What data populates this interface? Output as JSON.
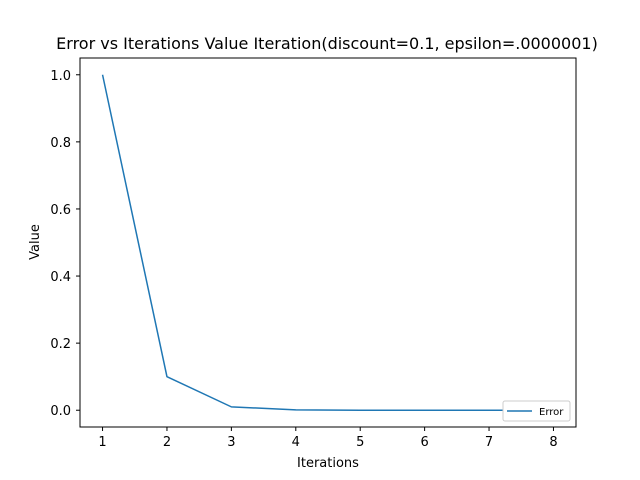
{
  "chart_data": {
    "type": "line",
    "title": "Error vs Iterations Value Iteration(discount=0.1, epsilon=.0000001)",
    "xlabel": "Iterations",
    "ylabel": "Value",
    "x": [
      1,
      2,
      3,
      4,
      5,
      6,
      7,
      8
    ],
    "series": [
      {
        "name": "Error",
        "values": [
          1.0,
          0.1,
          0.01,
          0.001,
          0.0001,
          1e-05,
          1e-06,
          1e-07
        ],
        "color": "#1f77b4"
      }
    ],
    "xlim": [
      0.65,
      8.35
    ],
    "ylim": [
      -0.05,
      1.05
    ],
    "xticks": [
      1,
      2,
      3,
      4,
      5,
      6,
      7,
      8
    ],
    "xtick_labels": [
      "1",
      "2",
      "3",
      "4",
      "5",
      "6",
      "7",
      "8"
    ],
    "yticks": [
      0.0,
      0.2,
      0.4,
      0.6,
      0.8,
      1.0
    ],
    "ytick_labels": [
      "0.0",
      "0.2",
      "0.4",
      "0.6",
      "0.8",
      "1.0"
    ],
    "grid": false,
    "legend_position": "lower-right"
  }
}
